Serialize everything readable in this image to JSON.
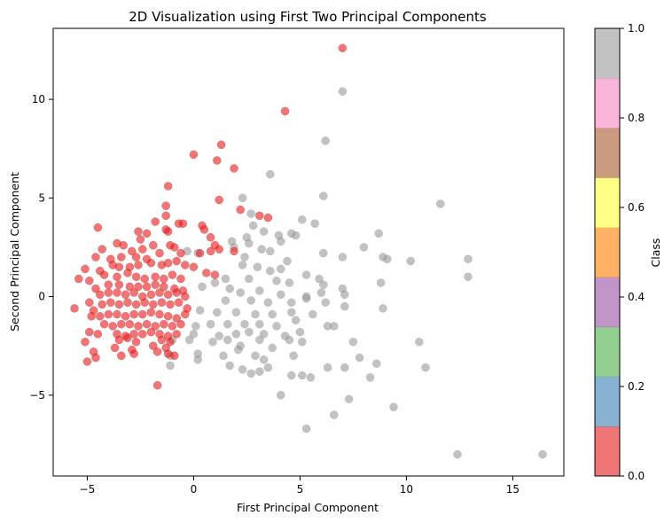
{
  "chart_data": {
    "type": "scatter",
    "title": "2D Visualization using First Two Principal Components",
    "xlabel": "First Principal Component",
    "ylabel": "Second Principal Component",
    "xlim": [
      -6.6,
      17.4
    ],
    "ylim": [
      -9.1,
      13.6
    ],
    "xticks": [
      -5,
      0,
      5,
      10,
      15
    ],
    "yticks": [
      -5,
      0,
      5,
      10
    ],
    "xtick_labels": [
      "−5",
      "0",
      "5",
      "10",
      "15"
    ],
    "ytick_labels": [
      "−5",
      "0",
      "5",
      "10"
    ],
    "grid": false,
    "legend": "none",
    "colorbar": {
      "label": "Class",
      "ticks": [
        0.0,
        0.2,
        0.4,
        0.6,
        0.8,
        1.0
      ],
      "tick_labels": [
        "0.0",
        "0.2",
        "0.4",
        "0.6",
        "0.8",
        "1.0"
      ],
      "colors": [
        "#e41a1c",
        "#377eb8",
        "#4daf4a",
        "#984ea3",
        "#ff7f00",
        "#ffff33",
        "#a65628",
        "#f781bf",
        "#999999"
      ]
    },
    "point_alpha": 0.6,
    "series": [
      {
        "class": 0,
        "color": "#e41a1c",
        "points": [
          [
            7.0,
            12.6
          ],
          [
            4.3,
            9.4
          ],
          [
            1.3,
            7.7
          ],
          [
            0.0,
            7.2
          ],
          [
            1.1,
            6.9
          ],
          [
            1.9,
            6.5
          ],
          [
            -1.2,
            5.6
          ],
          [
            1.2,
            4.9
          ],
          [
            -1.3,
            4.6
          ],
          [
            2.2,
            4.4
          ],
          [
            3.1,
            4.1
          ],
          [
            3.5,
            4.0
          ],
          [
            -1.3,
            4.1
          ],
          [
            -1.8,
            3.8
          ],
          [
            -0.7,
            3.7
          ],
          [
            -0.5,
            3.7
          ],
          [
            0.4,
            3.6
          ],
          [
            0.5,
            3.4
          ],
          [
            0.8,
            3.0
          ],
          [
            -4.5,
            3.5
          ],
          [
            -2.6,
            3.3
          ],
          [
            -2.2,
            3.2
          ],
          [
            -1.3,
            3.4
          ],
          [
            -1.2,
            3.3
          ],
          [
            -2.5,
            2.9
          ],
          [
            -3.3,
            2.6
          ],
          [
            -1.9,
            2.6
          ],
          [
            -1.1,
            2.6
          ],
          [
            -0.9,
            2.5
          ],
          [
            1.0,
            2.6
          ],
          [
            1.2,
            2.4
          ],
          [
            0.8,
            2.3
          ],
          [
            1.9,
            2.3
          ],
          [
            -4.3,
            2.4
          ],
          [
            -4.6,
            2.0
          ],
          [
            -3.6,
            2.7
          ],
          [
            -2.9,
            2.3
          ],
          [
            -2.4,
            2.4
          ],
          [
            -3.9,
            1.9
          ],
          [
            -3.4,
            2.0
          ],
          [
            -2.7,
            2.0
          ],
          [
            -2.2,
            1.9
          ],
          [
            -1.6,
            2.2
          ],
          [
            -0.6,
            2.2
          ],
          [
            0.3,
            2.2
          ],
          [
            -5.1,
            1.4
          ],
          [
            -4.4,
            1.3
          ],
          [
            -3.8,
            1.6
          ],
          [
            -3.5,
            1.5
          ],
          [
            -3.0,
            1.5
          ],
          [
            -2.6,
            1.6
          ],
          [
            -2.0,
            1.7
          ],
          [
            -1.5,
            1.6
          ],
          [
            -1.2,
            1.7
          ],
          [
            -0.8,
            1.8
          ],
          [
            -0.4,
            1.6
          ],
          [
            0.0,
            1.5
          ],
          [
            0.6,
            1.2
          ],
          [
            1.0,
            1.1
          ],
          [
            -5.4,
            0.9
          ],
          [
            -4.9,
            0.8
          ],
          [
            -4.2,
            1.1
          ],
          [
            -3.6,
            1.0
          ],
          [
            -3.1,
            1.2
          ],
          [
            -2.7,
            1.0
          ],
          [
            -2.3,
            0.9
          ],
          [
            -1.8,
            1.0
          ],
          [
            -1.4,
            0.9
          ],
          [
            -1.0,
            1.1
          ],
          [
            -0.6,
            0.9
          ],
          [
            -4.6,
            0.4
          ],
          [
            -4.0,
            0.6
          ],
          [
            -3.5,
            0.6
          ],
          [
            -3.0,
            0.5
          ],
          [
            -2.6,
            0.5
          ],
          [
            -2.2,
            0.5
          ],
          [
            -1.8,
            0.6
          ],
          [
            -1.4,
            0.5
          ],
          [
            -0.9,
            0.4
          ],
          [
            -0.5,
            0.3
          ],
          [
            -5.6,
            -0.6
          ],
          [
            -4.9,
            -0.3
          ],
          [
            -4.4,
            0.1
          ],
          [
            -4.0,
            0.2
          ],
          [
            -3.6,
            0.2
          ],
          [
            -3.2,
            0.1
          ],
          [
            -2.8,
            0.2
          ],
          [
            -2.4,
            0.0
          ],
          [
            -2.0,
            0.1
          ],
          [
            -1.6,
            0.2
          ],
          [
            -1.2,
            0.1
          ],
          [
            -0.8,
            0.2
          ],
          [
            -0.4,
            0.0
          ],
          [
            -4.7,
            -0.7
          ],
          [
            -4.3,
            -0.4
          ],
          [
            -3.9,
            -0.3
          ],
          [
            -3.5,
            -0.4
          ],
          [
            -3.1,
            -0.3
          ],
          [
            -2.7,
            -0.4
          ],
          [
            -2.3,
            -0.3
          ],
          [
            -1.9,
            -0.4
          ],
          [
            -1.5,
            -0.3
          ],
          [
            -1.1,
            -0.4
          ],
          [
            -0.7,
            -0.3
          ],
          [
            -0.3,
            -0.6
          ],
          [
            -4.8,
            -1.0
          ],
          [
            -4.4,
            -1.0
          ],
          [
            -4.0,
            -0.9
          ],
          [
            -3.6,
            -0.9
          ],
          [
            -3.2,
            -1.0
          ],
          [
            -2.8,
            -0.9
          ],
          [
            -2.4,
            -0.9
          ],
          [
            -2.0,
            -0.8
          ],
          [
            -1.6,
            -0.9
          ],
          [
            -1.2,
            -1.0
          ],
          [
            -0.8,
            -1.1
          ],
          [
            -0.4,
            -0.9
          ],
          [
            -4.2,
            -1.4
          ],
          [
            -3.8,
            -1.5
          ],
          [
            -3.4,
            -1.4
          ],
          [
            -3.0,
            -1.4
          ],
          [
            -2.6,
            -1.5
          ],
          [
            -2.2,
            -1.4
          ],
          [
            -1.8,
            -1.5
          ],
          [
            -1.4,
            -1.4
          ],
          [
            -1.0,
            -1.5
          ],
          [
            -0.6,
            -1.4
          ],
          [
            -4.9,
            -1.8
          ],
          [
            -4.5,
            -1.9
          ],
          [
            -3.6,
            -1.9
          ],
          [
            -3.2,
            -2.0
          ],
          [
            -2.8,
            -1.9
          ],
          [
            -2.4,
            -1.9
          ],
          [
            -2.0,
            -1.8
          ],
          [
            -1.6,
            -1.9
          ],
          [
            -1.2,
            -2.0
          ],
          [
            -0.8,
            -1.9
          ],
          [
            -5.1,
            -2.3
          ],
          [
            -3.5,
            -2.2
          ],
          [
            -3.1,
            -2.1
          ],
          [
            -2.7,
            -2.3
          ],
          [
            -1.5,
            -2.2
          ],
          [
            -1.1,
            -2.3
          ],
          [
            -3.7,
            -2.6
          ],
          [
            -2.9,
            -2.7
          ],
          [
            -1.9,
            -2.5
          ],
          [
            -1.3,
            -2.6
          ],
          [
            -4.7,
            -2.8
          ],
          [
            -2.8,
            -2.9
          ],
          [
            -1.7,
            -2.8
          ],
          [
            -1.2,
            -2.9
          ],
          [
            -4.6,
            -3.1
          ],
          [
            -3.4,
            -3.0
          ],
          [
            -0.9,
            -3.0
          ],
          [
            -5.0,
            -3.3
          ],
          [
            -1.7,
            -4.5
          ]
        ]
      },
      {
        "class": 1,
        "color": "#999999",
        "points": [
          [
            7.0,
            10.4
          ],
          [
            6.2,
            7.9
          ],
          [
            3.6,
            6.2
          ],
          [
            6.1,
            5.1
          ],
          [
            11.6,
            4.7
          ],
          [
            2.3,
            5.0
          ],
          [
            2.7,
            4.2
          ],
          [
            5.1,
            3.9
          ],
          [
            5.7,
            3.7
          ],
          [
            2.8,
            3.6
          ],
          [
            3.3,
            3.3
          ],
          [
            4.0,
            3.1
          ],
          [
            4.6,
            3.2
          ],
          [
            4.8,
            3.1
          ],
          [
            8.7,
            3.2
          ],
          [
            2.5,
            3.0
          ],
          [
            1.8,
            2.8
          ],
          [
            2.6,
            2.7
          ],
          [
            4.1,
            2.8
          ],
          [
            1.9,
            2.5
          ],
          [
            3.2,
            2.4
          ],
          [
            3.6,
            2.3
          ],
          [
            8.0,
            2.5
          ],
          [
            6.1,
            2.2
          ],
          [
            7.0,
            2.0
          ],
          [
            8.9,
            2.0
          ],
          [
            9.1,
            1.9
          ],
          [
            12.9,
            1.9
          ],
          [
            10.2,
            1.8
          ],
          [
            2.4,
            2.0
          ],
          [
            4.4,
            1.8
          ],
          [
            0.2,
            2.2
          ],
          [
            -0.3,
            2.3
          ],
          [
            2.3,
            1.6
          ],
          [
            3.0,
            1.5
          ],
          [
            3.6,
            1.3
          ],
          [
            4.1,
            1.4
          ],
          [
            5.3,
            1.1
          ],
          [
            5.9,
            0.9
          ],
          [
            12.9,
            1.0
          ],
          [
            1.5,
            0.9
          ],
          [
            2.6,
            0.9
          ],
          [
            3.9,
            0.8
          ],
          [
            4.5,
            0.7
          ],
          [
            6.1,
            0.6
          ],
          [
            7.0,
            0.4
          ],
          [
            8.8,
            0.7
          ],
          [
            1.0,
            0.7
          ],
          [
            1.7,
            0.4
          ],
          [
            2.2,
            0.2
          ],
          [
            3.1,
            0.3
          ],
          [
            4.1,
            0.1
          ],
          [
            5.3,
            0.0
          ],
          [
            6.0,
            0.2
          ],
          [
            7.1,
            0.1
          ],
          [
            0.4,
            0.5
          ],
          [
            1.5,
            -0.2
          ],
          [
            2.7,
            -0.2
          ],
          [
            3.5,
            -0.3
          ],
          [
            4.6,
            -0.3
          ],
          [
            5.3,
            -0.1
          ],
          [
            6.2,
            -0.3
          ],
          [
            7.1,
            -0.5
          ],
          [
            8.9,
            -0.6
          ],
          [
            0.3,
            -0.7
          ],
          [
            1.1,
            -0.8
          ],
          [
            2.0,
            -0.8
          ],
          [
            2.9,
            -0.9
          ],
          [
            3.7,
            -0.9
          ],
          [
            4.6,
            -0.8
          ],
          [
            5.6,
            -0.9
          ],
          [
            0.8,
            -1.4
          ],
          [
            1.6,
            -1.4
          ],
          [
            2.4,
            -1.4
          ],
          [
            3.1,
            -1.4
          ],
          [
            3.9,
            -1.5
          ],
          [
            4.8,
            -1.2
          ],
          [
            6.3,
            -1.5
          ],
          [
            6.6,
            -1.5
          ],
          [
            0.1,
            -1.5
          ],
          [
            1.2,
            -2.0
          ],
          [
            2.0,
            -1.9
          ],
          [
            2.6,
            -1.8
          ],
          [
            3.3,
            -1.9
          ],
          [
            4.3,
            -2.0
          ],
          [
            5.0,
            -1.8
          ],
          [
            5.1,
            -2.3
          ],
          [
            0.9,
            -2.3
          ],
          [
            1.6,
            -2.2
          ],
          [
            2.2,
            -2.5
          ],
          [
            3.1,
            -2.2
          ],
          [
            3.7,
            -2.6
          ],
          [
            4.5,
            -2.2
          ],
          [
            7.5,
            -2.3
          ],
          [
            10.6,
            -2.3
          ],
          [
            0.0,
            -1.9
          ],
          [
            -0.2,
            -2.2
          ],
          [
            -1.0,
            -2.2
          ],
          [
            0.2,
            -2.9
          ],
          [
            1.4,
            -3.0
          ],
          [
            2.1,
            -2.7
          ],
          [
            2.9,
            -3.0
          ],
          [
            3.3,
            -3.2
          ],
          [
            4.7,
            -3.0
          ],
          [
            7.8,
            -3.1
          ],
          [
            0.2,
            -3.2
          ],
          [
            1.7,
            -3.5
          ],
          [
            2.3,
            -3.7
          ],
          [
            3.1,
            -3.8
          ],
          [
            3.5,
            -3.6
          ],
          [
            6.3,
            -3.6
          ],
          [
            7.1,
            -3.6
          ],
          [
            8.6,
            -3.4
          ],
          [
            10.9,
            -3.6
          ],
          [
            -1.1,
            -3.5
          ],
          [
            2.7,
            -3.9
          ],
          [
            4.6,
            -4.0
          ],
          [
            5.1,
            -4.0
          ],
          [
            5.5,
            -4.1
          ],
          [
            8.3,
            -4.1
          ],
          [
            -1.1,
            -3.0
          ],
          [
            4.1,
            -5.0
          ],
          [
            7.3,
            -5.2
          ],
          [
            9.4,
            -5.6
          ],
          [
            6.6,
            -6.0
          ],
          [
            5.3,
            -6.7
          ],
          [
            12.4,
            -8.0
          ],
          [
            16.4,
            -8.0
          ]
        ]
      }
    ]
  }
}
